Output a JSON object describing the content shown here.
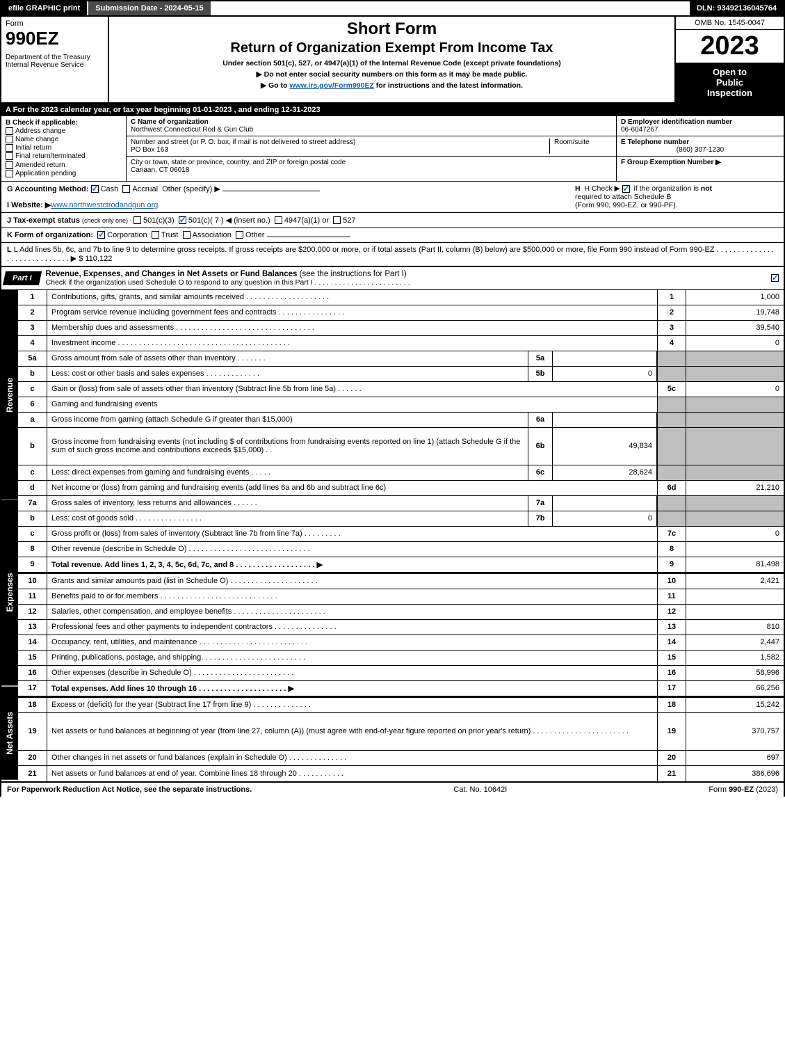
{
  "topbar": {
    "efile": "efile GRAPHIC print",
    "subdate": "Submission Date - 2024-05-15",
    "dln": "DLN: 93492136045764"
  },
  "header": {
    "form_label": "Form",
    "form_num": "990EZ",
    "dept": "Department of the Treasury\nInternal Revenue Service",
    "short_form": "Short Form",
    "return_title": "Return of Organization Exempt From Income Tax",
    "under_sec": "Under section 501(c), 527, or 4947(a)(1) of the Internal Revenue Code (except private foundations)",
    "note1": "▶ Do not enter social security numbers on this form as it may be made public.",
    "note2_pre": "▶ Go to ",
    "note2_link": "www.irs.gov/Form990EZ",
    "note2_post": " for instructions and the latest information.",
    "omb": "OMB No. 1545-0047",
    "year": "2023",
    "open1": "Open to",
    "open2": "Public",
    "open3": "Inspection"
  },
  "a": "A  For the 2023 calendar year, or tax year beginning 01-01-2023 , and ending 12-31-2023",
  "b": {
    "title": "B  Check if applicable:",
    "items": [
      "Address change",
      "Name change",
      "Initial return",
      "Final return/terminated",
      "Amended return",
      "Application pending"
    ]
  },
  "c": {
    "name_label": "C Name of organization",
    "name": "Northwest Connecticut Rod & Gun Club",
    "street_label": "Number and street (or P. O. box, if mail is not delivered to street address)",
    "room_label": "Room/suite",
    "street": "PO Box 163",
    "city_label": "City or town, state or province, country, and ZIP or foreign postal code",
    "city": "Canaan, CT  06018"
  },
  "d": {
    "ein_label": "D Employer identification number",
    "ein": "06-6047267",
    "tel_label": "E Telephone number",
    "tel": "(860) 307-1230",
    "grp_label": "F Group Exemption Number   ▶"
  },
  "g": {
    "label": "G Accounting Method:",
    "cash": "Cash",
    "accrual": "Accrual",
    "other": "Other (specify) ▶",
    "website_label": "I Website: ▶",
    "website": "www.northwestctrodandgun.org",
    "j_label": "J Tax-exempt status ",
    "j_sub": "(check only one) - ",
    "j1": "501(c)(3)",
    "j2": "501(c)( 7 ) ◀ (insert no.)",
    "j3": "4947(a)(1) or",
    "j4": "527"
  },
  "h": {
    "label": "H  Check ▶",
    "text1": "if the organization is ",
    "not": "not",
    "text2": "required to attach Schedule B",
    "text3": "(Form 990, 990-EZ, or 990-PF)."
  },
  "k": {
    "label": "K Form of organization:",
    "opts": [
      "Corporation",
      "Trust",
      "Association",
      "Other"
    ]
  },
  "l": {
    "text": "L Add lines 5b, 6c, and 7b to line 9 to determine gross receipts. If gross receipts are $200,000 or more, or if total assets (Part II, column (B) below) are $500,000 or more, file Form 990 instead of Form 990-EZ  .  .  .  .  .  .  .  .  .  .  .  .  .  .  .  .  .  .  .  .  .  .  .  .  .  .  .  .  .  ▶ $ ",
    "amount": "110,122"
  },
  "part1": {
    "tab": "Part I",
    "title": "Revenue, Expenses, and Changes in Net Assets or Fund Balances ",
    "title_note": "(see the instructions for Part I)",
    "sub": "Check if the organization used Schedule O to respond to any question in this Part I  .  .  .  .  .  .  .  .  .  .  .  .  .  .  .  .  .  .  .  .  .  .  .  ."
  },
  "sections": {
    "revenue_label": "Revenue",
    "expenses_label": "Expenses",
    "netassets_label": "Net Assets"
  },
  "lines": [
    {
      "n": "1",
      "desc": "Contributions, gifts, grants, and similar amounts received  .  .  .  .  .  .  .  .  .  .  .  .  .  .  .  .  .  .  .  .",
      "r": "1",
      "val": "1,000"
    },
    {
      "n": "2",
      "desc": "Program service revenue including government fees and contracts  .  .  .  .  .  .  .  .  .  .  .  .  .  .  .  .",
      "r": "2",
      "val": "19,748"
    },
    {
      "n": "3",
      "desc": "Membership dues and assessments  .  .  .  .  .  .  .  .  .  .  .  .  .  .  .  .  .  .  .  .  .  .  .  .  .  .  .  .  .  .  .  .  .",
      "r": "3",
      "val": "39,540"
    },
    {
      "n": "4",
      "desc": "Investment income  .  .  .  .  .  .  .  .  .  .  .  .  .  .  .  .  .  .  .  .  .  .  .  .  .  .  .  .  .  .  .  .  .  .  .  .  .  .  .  .  .",
      "r": "4",
      "val": "0"
    },
    {
      "n": "5a",
      "desc": "Gross amount from sale of assets other than inventory  .  .  .  .  .  .  .",
      "mid": "5a",
      "midval": "",
      "shaded": true
    },
    {
      "n": "b",
      "desc": "Less: cost or other basis and sales expenses  .  .  .  .  .  .  .  .  .  .  .  .  .",
      "mid": "5b",
      "midval": "0",
      "shaded": true
    },
    {
      "n": "c",
      "desc": "Gain or (loss) from sale of assets other than inventory (Subtract line 5b from line 5a)  .  .  .  .  .  .",
      "r": "5c",
      "val": "0"
    },
    {
      "n": "6",
      "desc": "Gaming and fundraising events",
      "shaded": true,
      "noval": true
    },
    {
      "n": "a",
      "desc": "Gross income from gaming (attach Schedule G if greater than $15,000)",
      "mid": "6a",
      "midval": "",
      "shaded": true
    },
    {
      "n": "b",
      "desc": "Gross income from fundraising events (not including $                           of contributions from fundraising events reported on line 1) (attach Schedule G if the sum of such gross income and contributions exceeds $15,000)   .  .",
      "mid": "6b",
      "midval": "49,834",
      "shaded": true,
      "tall": true
    },
    {
      "n": "c",
      "desc": "Less: direct expenses from gaming and fundraising events   .  .  .  .  .",
      "mid": "6c",
      "midval": "28,624",
      "shaded": true
    },
    {
      "n": "d",
      "desc": "Net income or (loss) from gaming and fundraising events (add lines 6a and 6b and subtract line 6c)",
      "r": "6d",
      "val": "21,210"
    },
    {
      "n": "7a",
      "desc": "Gross sales of inventory, less returns and allowances  .  .  .  .  .  .",
      "mid": "7a",
      "midval": "",
      "shaded": true
    },
    {
      "n": "b",
      "desc": "Less: cost of goods sold      .  .  .  .  .  .  .  .  .  .  .  .  .  .  .  .",
      "mid": "7b",
      "midval": "0",
      "shaded": true
    },
    {
      "n": "c",
      "desc": "Gross profit or (loss) from sales of inventory (Subtract line 7b from line 7a)  .  .  .  .  .  .  .  .  .",
      "r": "7c",
      "val": "0"
    },
    {
      "n": "8",
      "desc": "Other revenue (describe in Schedule O)  .  .  .  .  .  .  .  .  .  .  .  .  .  .  .  .  .  .  .  .  .  .  .  .  .  .  .  .  .",
      "r": "8",
      "val": ""
    },
    {
      "n": "9",
      "desc": "Total revenue. Add lines 1, 2, 3, 4, 5c, 6d, 7c, and 8   .  .  .  .  .  .  .  .  .  .  .  .  .  .  .  .  .  .  .   ▶",
      "r": "9",
      "val": "81,498",
      "bold": true
    }
  ],
  "exp_lines": [
    {
      "n": "10",
      "desc": "Grants and similar amounts paid (list in Schedule O)  .  .  .  .  .  .  .  .  .  .  .  .  .  .  .  .  .  .  .  .  .",
      "r": "10",
      "val": "2,421"
    },
    {
      "n": "11",
      "desc": "Benefits paid to or for members      .  .  .  .  .  .  .  .  .  .  .  .  .  .  .  .  .  .  .  .  .  .  .  .  .  .  .  .",
      "r": "11",
      "val": ""
    },
    {
      "n": "12",
      "desc": "Salaries, other compensation, and employee benefits .  .  .  .  .  .  .  .  .  .  .  .  .  .  .  .  .  .  .  .  .  .",
      "r": "12",
      "val": ""
    },
    {
      "n": "13",
      "desc": "Professional fees and other payments to independent contractors  .  .  .  .  .  .  .  .  .  .  .  .  .  .  .",
      "r": "13",
      "val": "810"
    },
    {
      "n": "14",
      "desc": "Occupancy, rent, utilities, and maintenance .  .  .  .  .  .  .  .  .  .  .  .  .  .  .  .  .  .  .  .  .  .  .  .  .  .",
      "r": "14",
      "val": "2,447"
    },
    {
      "n": "15",
      "desc": "Printing, publications, postage, and shipping.  .  .  .  .  .  .  .  .  .  .  .  .  .  .  .  .  .  .  .  .  .  .  .  .",
      "r": "15",
      "val": "1,582"
    },
    {
      "n": "16",
      "desc": "Other expenses (describe in Schedule O)     .  .  .  .  .  .  .  .  .  .  .  .  .  .  .  .  .  .  .  .  .  .  .  .",
      "r": "16",
      "val": "58,996"
    },
    {
      "n": "17",
      "desc": "Total expenses. Add lines 10 through 16     .  .  .  .  .  .  .  .  .  .  .  .  .  .  .  .  .  .  .  .  .   ▶",
      "r": "17",
      "val": "66,256",
      "bold": true
    }
  ],
  "na_lines": [
    {
      "n": "18",
      "desc": "Excess or (deficit) for the year (Subtract line 17 from line 9)       .  .  .  .  .  .  .  .  .  .  .  .  .  .",
      "r": "18",
      "val": "15,242"
    },
    {
      "n": "19",
      "desc": "Net assets or fund balances at beginning of year (from line 27, column (A)) (must agree with end-of-year figure reported on prior year's return) .  .  .  .  .  .  .  .  .  .  .  .  .  .  .  .  .  .  .  .  .  .  .",
      "r": "19",
      "val": "370,757",
      "tall": true
    },
    {
      "n": "20",
      "desc": "Other changes in net assets or fund balances (explain in Schedule O) .  .  .  .  .  .  .  .  .  .  .  .  .  .",
      "r": "20",
      "val": "697"
    },
    {
      "n": "21",
      "desc": "Net assets or fund balances at end of year. Combine lines 18 through 20 .  .  .  .  .  .  .  .  .  .  .",
      "r": "21",
      "val": "386,696"
    }
  ],
  "footer": {
    "left": "For Paperwork Reduction Act Notice, see the separate instructions.",
    "mid": "Cat. No. 10642I",
    "right_pre": "Form ",
    "right_bold": "990-EZ",
    "right_post": " (2023)"
  }
}
